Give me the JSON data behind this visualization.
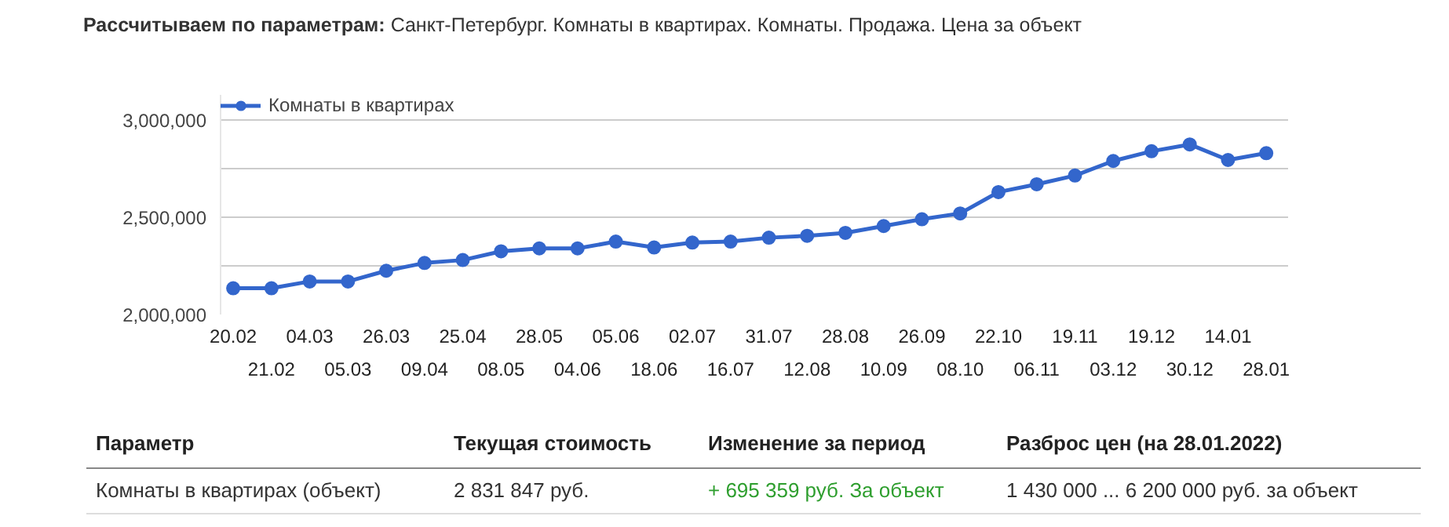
{
  "chart_data": {
    "type": "line",
    "title": "Рассчитываем по параметрам:",
    "subtitle": "Санкт-Петербург. Комнаты в квартирах. Комнаты. Продажа. Цена за объект",
    "categories": [
      "20.02",
      "21.02",
      "04.03",
      "05.03",
      "26.03",
      "09.04",
      "25.04",
      "08.05",
      "28.05",
      "04.06",
      "05.06",
      "18.06",
      "02.07",
      "16.07",
      "31.07",
      "12.08",
      "28.08",
      "10.09",
      "26.09",
      "08.10",
      "22.10",
      "06.11",
      "19.11",
      "03.12",
      "19.12",
      "30.12",
      "14.01",
      "28.01"
    ],
    "series": [
      {
        "name": "Комнаты в квартирах",
        "color": "#3366cc",
        "values": [
          2135000,
          2135000,
          2170000,
          2170000,
          2225000,
          2265000,
          2280000,
          2325000,
          2340000,
          2340000,
          2375000,
          2345000,
          2370000,
          2375000,
          2395000,
          2405000,
          2420000,
          2455000,
          2490000,
          2520000,
          2630000,
          2670000,
          2715000,
          2790000,
          2840000,
          2875000,
          2795000,
          2830000
        ]
      }
    ],
    "ylim": [
      2000000,
      3130000
    ],
    "yticks": [
      {
        "value": 2000000,
        "label": "2,000,000"
      },
      {
        "value": 2250000,
        "label": null
      },
      {
        "value": 2500000,
        "label": "2,500,000"
      },
      {
        "value": 2750000,
        "label": null
      },
      {
        "value": 3000000,
        "label": "3,000,000"
      }
    ],
    "grid": "y",
    "legend": "top left",
    "marker": "circle",
    "line_style": "solid",
    "annotations": [
      "Параметр",
      "Текущая стоимость",
      "Изменение за период",
      "Разброс цен (на 28.01.2022)",
      "Комнаты в квартирах (объект)",
      "2 831 847 руб.",
      "+ 695 359 руб. За объект",
      "1 430 000 ... 6 200 000 руб. за объект"
    ]
  }
}
